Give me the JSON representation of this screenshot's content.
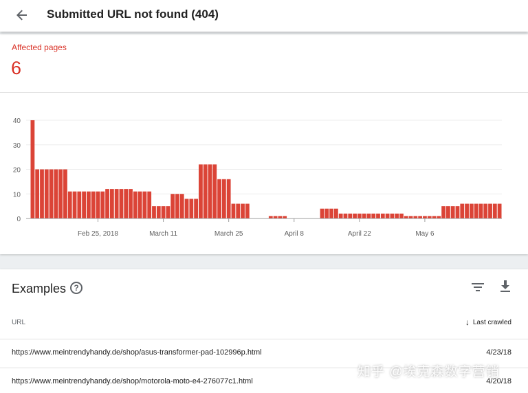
{
  "header": {
    "title": "Submitted URL not found (404)"
  },
  "metric": {
    "label": "Affected pages",
    "value": "6"
  },
  "chart_data": {
    "type": "bar",
    "ylim": [
      0,
      40
    ],
    "yticks": [
      0,
      10,
      20,
      30,
      40
    ],
    "grid": true,
    "color": "#db4437",
    "xtick_labels": [
      {
        "label": "Feb 25, 2018",
        "index": 14
      },
      {
        "label": "March 11",
        "index": 28
      },
      {
        "label": "March 25",
        "index": 42
      },
      {
        "label": "April 8",
        "index": 56
      },
      {
        "label": "April 22",
        "index": 70
      },
      {
        "label": "May 6",
        "index": 84
      }
    ],
    "values": [
      40,
      20,
      20,
      20,
      20,
      20,
      20,
      20,
      11,
      11,
      11,
      11,
      11,
      11,
      11,
      11,
      12,
      12,
      12,
      12,
      12,
      12,
      11,
      11,
      11,
      11,
      5,
      5,
      5,
      5,
      10,
      10,
      10,
      8,
      8,
      8,
      22,
      22,
      22,
      22,
      16,
      16,
      16,
      6,
      6,
      6,
      6,
      0,
      0,
      0,
      0,
      1,
      1,
      1,
      1,
      0,
      0,
      0,
      0,
      0,
      0,
      0,
      4,
      4,
      4,
      4,
      2,
      2,
      2,
      2,
      2,
      2,
      2,
      2,
      2,
      2,
      2,
      2,
      2,
      2,
      1,
      1,
      1,
      1,
      1,
      1,
      1,
      1,
      5,
      5,
      5,
      5,
      6,
      6,
      6,
      6,
      6,
      6,
      6,
      6,
      6
    ]
  },
  "examples": {
    "title": "Examples",
    "help_glyph": "?",
    "column_url": "URL",
    "column_crawled": "Last crawled",
    "sort_glyph": "↓",
    "rows": [
      {
        "url": "https://www.meintrendyhandy.de/shop/asus-transformer-pad-102996p.html",
        "date": "4/23/18"
      },
      {
        "url": "https://www.meintrendyhandy.de/shop/motorola-moto-e4-276077c1.html",
        "date": "4/20/18"
      }
    ]
  },
  "watermark": "知乎 @埃克森数字营销"
}
